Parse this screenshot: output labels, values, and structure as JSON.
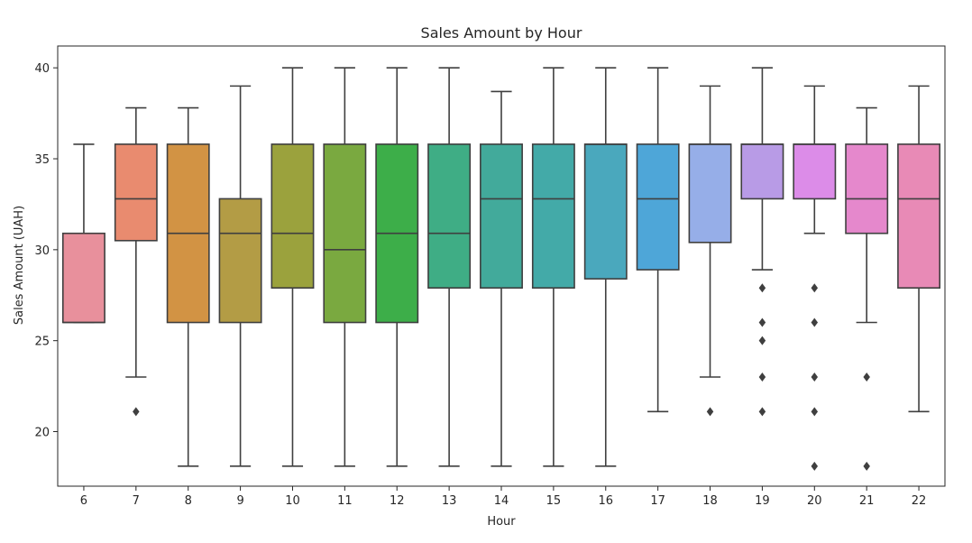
{
  "chart_data": {
    "type": "box",
    "title": "Sales Amount by Hour",
    "xlabel": "Hour",
    "ylabel": "Sales Amount (UAH)",
    "ylim": [
      17.0,
      41.2
    ],
    "yticks": [
      20,
      25,
      30,
      35,
      40
    ],
    "grid": false,
    "categories": [
      "6",
      "7",
      "8",
      "9",
      "10",
      "11",
      "12",
      "13",
      "14",
      "15",
      "16",
      "17",
      "18",
      "19",
      "20",
      "21",
      "22"
    ],
    "colors": [
      "#e8909c",
      "#e98b6f",
      "#d29344",
      "#b39c45",
      "#9ba23d",
      "#7aa940",
      "#3dae49",
      "#3fad85",
      "#42aa9b",
      "#43aaa8",
      "#4aa8bd",
      "#4ea6d8",
      "#96aee8",
      "#b89be6",
      "#dc8ce8",
      "#e588cc",
      "#e88ab6"
    ],
    "boxes": [
      {
        "whislo": 26.0,
        "q1": 26.0,
        "med": 26.0,
        "q3": 30.9,
        "whishi": 35.8,
        "fliers": []
      },
      {
        "whislo": 23.0,
        "q1": 30.5,
        "med": 32.8,
        "q3": 35.8,
        "whishi": 37.8,
        "fliers": [
          21.1
        ]
      },
      {
        "whislo": 18.1,
        "q1": 26.0,
        "med": 30.9,
        "q3": 35.8,
        "whishi": 37.8,
        "fliers": []
      },
      {
        "whislo": 18.1,
        "q1": 26.0,
        "med": 30.9,
        "q3": 32.8,
        "whishi": 39.0,
        "fliers": []
      },
      {
        "whislo": 18.1,
        "q1": 27.9,
        "med": 30.9,
        "q3": 35.8,
        "whishi": 40.0,
        "fliers": []
      },
      {
        "whislo": 18.1,
        "q1": 26.0,
        "med": 30.0,
        "q3": 35.8,
        "whishi": 40.0,
        "fliers": []
      },
      {
        "whislo": 18.1,
        "q1": 26.0,
        "med": 30.9,
        "q3": 35.8,
        "whishi": 40.0,
        "fliers": []
      },
      {
        "whislo": 18.1,
        "q1": 27.9,
        "med": 30.9,
        "q3": 35.8,
        "whishi": 40.0,
        "fliers": []
      },
      {
        "whislo": 18.1,
        "q1": 27.9,
        "med": 32.8,
        "q3": 35.8,
        "whishi": 38.7,
        "fliers": []
      },
      {
        "whislo": 18.1,
        "q1": 27.9,
        "med": 32.8,
        "q3": 35.8,
        "whishi": 40.0,
        "fliers": []
      },
      {
        "whislo": 18.1,
        "q1": 28.4,
        "med": 35.8,
        "q3": 35.8,
        "whishi": 40.0,
        "fliers": []
      },
      {
        "whislo": 21.1,
        "q1": 28.9,
        "med": 32.8,
        "q3": 35.8,
        "whishi": 40.0,
        "fliers": []
      },
      {
        "whislo": 23.0,
        "q1": 30.4,
        "med": 35.8,
        "q3": 35.8,
        "whishi": 39.0,
        "fliers": [
          21.1
        ]
      },
      {
        "whislo": 28.9,
        "q1": 32.8,
        "med": 35.8,
        "q3": 35.8,
        "whishi": 40.0,
        "fliers": [
          27.9,
          26.0,
          25.0,
          23.0,
          21.1
        ]
      },
      {
        "whislo": 30.9,
        "q1": 32.8,
        "med": 35.8,
        "q3": 35.8,
        "whishi": 39.0,
        "fliers": [
          27.9,
          26.0,
          23.0,
          21.1,
          18.1
        ]
      },
      {
        "whislo": 26.0,
        "q1": 30.9,
        "med": 32.8,
        "q3": 35.8,
        "whishi": 37.8,
        "fliers": [
          23.0,
          18.1
        ]
      },
      {
        "whislo": 21.1,
        "q1": 27.9,
        "med": 32.8,
        "q3": 35.8,
        "whishi": 39.0,
        "fliers": []
      }
    ]
  }
}
